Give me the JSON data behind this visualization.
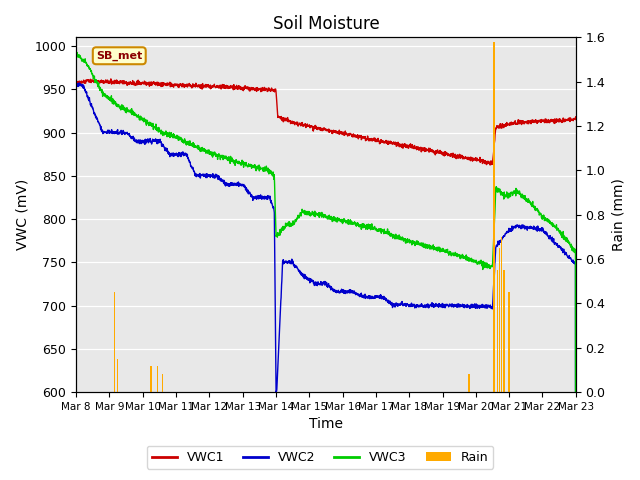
{
  "title": "Soil Moisture",
  "xlabel": "Time",
  "ylabel_left": "VWC (mV)",
  "ylabel_right": "Rain (mm)",
  "ylim_left": [
    600,
    1010
  ],
  "ylim_right": [
    0.0,
    1.6
  ],
  "yticks_left": [
    600,
    650,
    700,
    750,
    800,
    850,
    900,
    950,
    1000
  ],
  "yticks_right": [
    0.0,
    0.2,
    0.4,
    0.6,
    0.8,
    1.0,
    1.2,
    1.4,
    1.6
  ],
  "xtick_labels": [
    "Mar 8",
    "Mar 9",
    "Mar 10",
    "Mar 11",
    "Mar 12",
    "Mar 13",
    "Mar 14",
    "Mar 15",
    "Mar 16",
    "Mar 17",
    "Mar 18",
    "Mar 19",
    "Mar 20",
    "Mar 21",
    "Mar 22",
    "Mar 23"
  ],
  "line_colors": {
    "VWC1": "#cc0000",
    "VWC2": "#0000cc",
    "VWC3": "#00cc00"
  },
  "rain_color": "#ffaa00",
  "bg_color": "#e8e8e8",
  "annotation_text": "SB_met",
  "annotation_bg": "#ffffcc",
  "annotation_border": "#cc8800",
  "rain_x": [
    1.15,
    1.25,
    2.25,
    2.45,
    2.6,
    11.8,
    12.55,
    12.65,
    12.72,
    12.78,
    12.85,
    13.0
  ],
  "rain_h": [
    0.45,
    0.15,
    0.12,
    0.12,
    0.08,
    0.08,
    1.58,
    0.55,
    0.65,
    0.7,
    0.55,
    0.45
  ]
}
